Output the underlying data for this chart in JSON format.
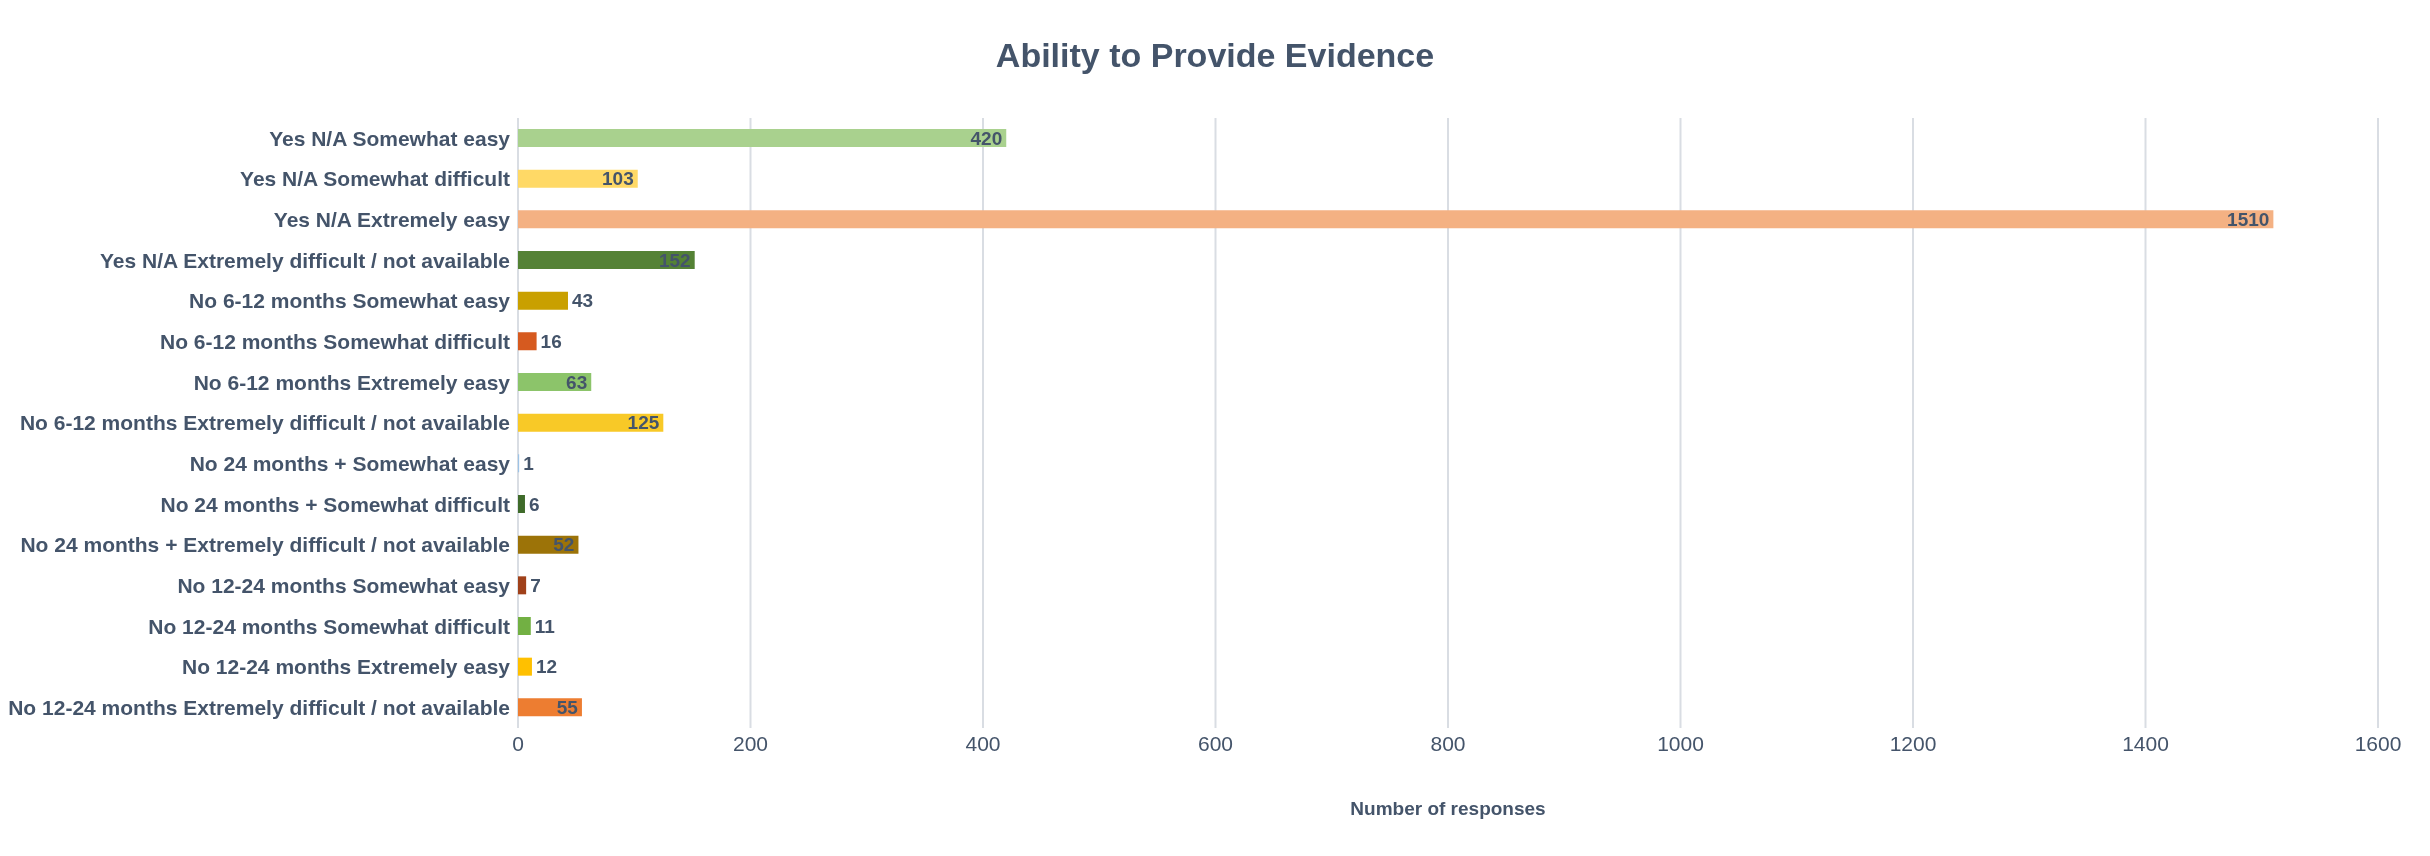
{
  "chart_data": {
    "type": "bar",
    "orientation": "horizontal",
    "title": "Ability to Provide Evidence",
    "xlabel": "Number of responses",
    "categories": [
      "Yes N/A Somewhat easy",
      "Yes N/A Somewhat difficult",
      "Yes N/A Extremely easy",
      "Yes N/A Extremely difficult / not available",
      "No 6-12 months Somewhat easy",
      "No 6-12 months Somewhat difficult",
      "No 6-12 months Extremely easy",
      "No 6-12 months Extremely difficult / not available",
      "No 24 months + Somewhat easy",
      "No 24 months + Somewhat difficult",
      "No 24 months + Extremely difficult / not available",
      "No 12-24 months Somewhat easy",
      "No 12-24 months Somewhat difficult",
      "No 12-24 months Extremely easy",
      "No 12-24 months Extremely difficult / not available"
    ],
    "values": [
      420,
      103,
      1510,
      152,
      43,
      16,
      63,
      125,
      1,
      6,
      52,
      7,
      11,
      12,
      55
    ],
    "colors": [
      "#a9d18e",
      "#ffd966",
      "#f4b183",
      "#548235",
      "#c9a000",
      "#d65a1f",
      "#8cc46a",
      "#f8c927",
      "#9dc3e6",
      "#3f6b2a",
      "#9c7308",
      "#a0411a",
      "#72b043",
      "#ffc000",
      "#ed7d31"
    ],
    "data_labels": true,
    "xlim": [
      0,
      1600
    ],
    "xticks": [
      0,
      200,
      400,
      600,
      800,
      1000,
      1200,
      1400,
      1600
    ],
    "grid": "x",
    "legend": false
  }
}
